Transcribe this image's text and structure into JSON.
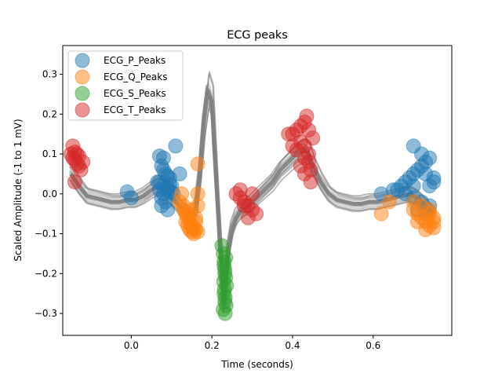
{
  "chart_data": {
    "type": "scatter",
    "title": "ECG peaks",
    "xlabel": "Time (seconds)",
    "ylabel": "Scaled Amplitude (-1 to 1 mV)",
    "xlim": [
      -0.17,
      0.795
    ],
    "ylim": [
      -0.355,
      0.372
    ],
    "xticks": [
      0.0,
      0.2,
      0.4,
      0.6
    ],
    "xtick_labels": [
      "0.0",
      "0.2",
      "0.4",
      "0.6"
    ],
    "yticks": [
      -0.3,
      -0.2,
      -0.1,
      0.0,
      0.1,
      0.2,
      0.3
    ],
    "ytick_labels": [
      "−0.3",
      "−0.2",
      "−0.1",
      "0.0",
      "0.1",
      "0.2",
      "0.3"
    ],
    "grid": false,
    "legend_position": "top-left",
    "trace_color": "#808080",
    "mean_beat": {
      "x": [
        -0.15,
        -0.13,
        -0.11,
        -0.09,
        -0.07,
        -0.05,
        -0.03,
        -0.01,
        0.01,
        0.03,
        0.05,
        0.07,
        0.08,
        0.1,
        0.12,
        0.14,
        0.15,
        0.16,
        0.17,
        0.18,
        0.19,
        0.2,
        0.21,
        0.22,
        0.23,
        0.24,
        0.25,
        0.26,
        0.27,
        0.29,
        0.31,
        0.33,
        0.35,
        0.37,
        0.39,
        0.41,
        0.43,
        0.44,
        0.45,
        0.47,
        0.49,
        0.51,
        0.53,
        0.55,
        0.57,
        0.59,
        0.61,
        0.63,
        0.65,
        0.67,
        0.69,
        0.71,
        0.73,
        0.75
      ],
      "y": [
        0.05,
        0.02,
        -0.005,
        -0.01,
        -0.015,
        -0.02,
        -0.02,
        -0.015,
        -0.015,
        -0.005,
        0.01,
        0.02,
        0.015,
        -0.01,
        -0.03,
        -0.05,
        -0.06,
        -0.04,
        0.05,
        0.18,
        0.26,
        0.23,
        0.05,
        -0.12,
        -0.27,
        -0.15,
        -0.09,
        -0.06,
        -0.045,
        -0.03,
        -0.01,
        0.01,
        0.03,
        0.06,
        0.08,
        0.1,
        0.11,
        0.1,
        0.07,
        0.03,
        0.0,
        -0.015,
        -0.02,
        -0.025,
        -0.025,
        -0.02,
        -0.02,
        -0.015,
        -0.01,
        -0.005,
        0.0,
        -0.01,
        -0.03,
        -0.05
      ]
    },
    "series": [
      {
        "name": "ECG_P_Peaks",
        "color": "#1f77b4",
        "x": [
          0.07,
          0.075,
          0.08,
          0.085,
          0.09,
          0.095,
          0.07,
          0.08,
          0.09,
          0.1,
          0.08,
          0.09,
          0.075,
          0.085,
          0.11,
          0.12,
          0.1,
          0.065,
          0.075,
          0.09,
          0.105,
          0.08,
          0.095,
          0.07,
          -0.01,
          0.0,
          0.67,
          0.68,
          0.69,
          0.7,
          0.71,
          0.72,
          0.73,
          0.74,
          0.75,
          0.66,
          0.68,
          0.7,
          0.72,
          0.74,
          0.7,
          0.72,
          0.73,
          0.75,
          0.7,
          0.74,
          0.65,
          0.62,
          0.71,
          0.73
        ],
        "y": [
          0.095,
          0.07,
          0.06,
          0.05,
          0.045,
          0.04,
          0.03,
          0.02,
          0.01,
          0.005,
          0.0,
          0.015,
          -0.01,
          -0.02,
          0.12,
          0.05,
          0.02,
          0.03,
          -0.03,
          -0.04,
          0.0,
          0.09,
          0.025,
          0.01,
          0.005,
          -0.01,
          0.02,
          0.03,
          0.04,
          0.05,
          0.06,
          0.07,
          0.08,
          0.09,
          0.04,
          0.01,
          0.0,
          -0.01,
          -0.02,
          -0.03,
          0.12,
          0.1,
          0.05,
          0.03,
          0.02,
          0.02,
          0.01,
          0.0,
          -0.04,
          -0.05
        ]
      },
      {
        "name": "ECG_Q_Peaks",
        "color": "#ff7f0e",
        "x": [
          0.13,
          0.135,
          0.14,
          0.145,
          0.15,
          0.155,
          0.16,
          0.165,
          0.135,
          0.145,
          0.155,
          0.14,
          0.15,
          0.16,
          0.12,
          0.125,
          0.165,
          0.14,
          0.15,
          0.16,
          0.165,
          0.13,
          0.165,
          0.7,
          0.71,
          0.72,
          0.73,
          0.74,
          0.75,
          0.7,
          0.72,
          0.74,
          0.75,
          0.73,
          0.71,
          0.74,
          0.62,
          0.64,
          0.75
        ],
        "y": [
          -0.03,
          -0.05,
          -0.06,
          -0.07,
          -0.08,
          -0.085,
          -0.09,
          -0.095,
          -0.07,
          -0.09,
          -0.1,
          -0.05,
          -0.04,
          -0.06,
          -0.02,
          0.0,
          0.075,
          -0.08,
          -0.095,
          -0.07,
          -0.03,
          -0.04,
          0.0,
          -0.04,
          -0.05,
          -0.06,
          -0.07,
          -0.08,
          -0.06,
          -0.02,
          -0.03,
          -0.05,
          -0.085,
          -0.09,
          -0.07,
          -0.04,
          -0.05,
          -0.02,
          -0.07
        ]
      },
      {
        "name": "ECG_S_Peaks",
        "color": "#2ca02c",
        "x": [
          0.225,
          0.228,
          0.23,
          0.232,
          0.234,
          0.236,
          0.23,
          0.232,
          0.228,
          0.233,
          0.235,
          0.229,
          0.231,
          0.233,
          0.232,
          0.23,
          0.234
        ],
        "y": [
          -0.13,
          -0.15,
          -0.17,
          -0.19,
          -0.21,
          -0.23,
          -0.25,
          -0.27,
          -0.29,
          -0.3,
          -0.28,
          -0.22,
          -0.24,
          -0.26,
          -0.2,
          -0.18,
          -0.16
        ]
      },
      {
        "name": "ECG_T_Peaks",
        "color": "#d62728",
        "x": [
          -0.145,
          -0.14,
          -0.135,
          -0.13,
          -0.14,
          -0.135,
          -0.13,
          -0.125,
          -0.15,
          -0.145,
          -0.12,
          -0.14,
          0.26,
          0.27,
          0.28,
          0.29,
          0.3,
          0.31,
          0.27,
          0.28,
          0.3,
          0.29,
          0.4,
          0.41,
          0.42,
          0.43,
          0.44,
          0.45,
          0.42,
          0.43,
          0.44,
          0.435,
          0.41,
          0.43,
          0.445,
          0.4,
          0.42,
          0.44,
          0.445,
          0.39,
          0.43
        ],
        "y": [
          0.12,
          0.105,
          0.1,
          0.095,
          0.085,
          0.075,
          0.07,
          0.06,
          0.1,
          0.09,
          0.08,
          0.03,
          0.0,
          -0.01,
          -0.02,
          -0.03,
          -0.04,
          -0.05,
          0.01,
          -0.03,
          0.0,
          -0.06,
          0.15,
          0.16,
          0.17,
          0.18,
          0.16,
          0.14,
          0.13,
          0.12,
          0.1,
          0.195,
          0.11,
          0.09,
          0.06,
          0.12,
          0.07,
          0.08,
          0.03,
          0.15,
          0.05
        ]
      }
    ]
  }
}
